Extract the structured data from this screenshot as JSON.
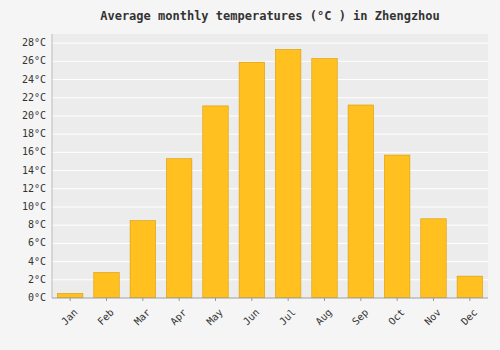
{
  "chart_data": {
    "type": "bar",
    "title": "Average monthly temperatures (°C ) in Zhengzhou",
    "categories": [
      "Jan",
      "Feb",
      "Mar",
      "Apr",
      "May",
      "Jun",
      "Jul",
      "Aug",
      "Sep",
      "Oct",
      "Nov",
      "Dec"
    ],
    "values": [
      0.5,
      2.8,
      8.5,
      15.3,
      21.1,
      25.9,
      27.3,
      26.3,
      21.2,
      15.7,
      8.7,
      2.4
    ],
    "color": "#FFC020",
    "ylim": [
      0,
      29
    ],
    "yticks": [
      {
        "value": 0,
        "label": "0°C"
      },
      {
        "value": 2,
        "label": "2°C"
      },
      {
        "value": 4,
        "label": "4°C"
      },
      {
        "value": 6,
        "label": "6°C"
      },
      {
        "value": 8,
        "label": "8°C"
      },
      {
        "value": 10,
        "label": "10°C"
      },
      {
        "value": 12,
        "label": "12°C"
      },
      {
        "value": 14,
        "label": "14°C"
      },
      {
        "value": 16,
        "label": "16°C"
      },
      {
        "value": 18,
        "label": "18°C"
      },
      {
        "value": 20,
        "label": "20°C"
      },
      {
        "value": 22,
        "label": "22°C"
      },
      {
        "value": 24,
        "label": "24°C"
      },
      {
        "value": 26,
        "label": "26°C"
      },
      {
        "value": 28,
        "label": "28°C"
      }
    ],
    "grid": true
  }
}
